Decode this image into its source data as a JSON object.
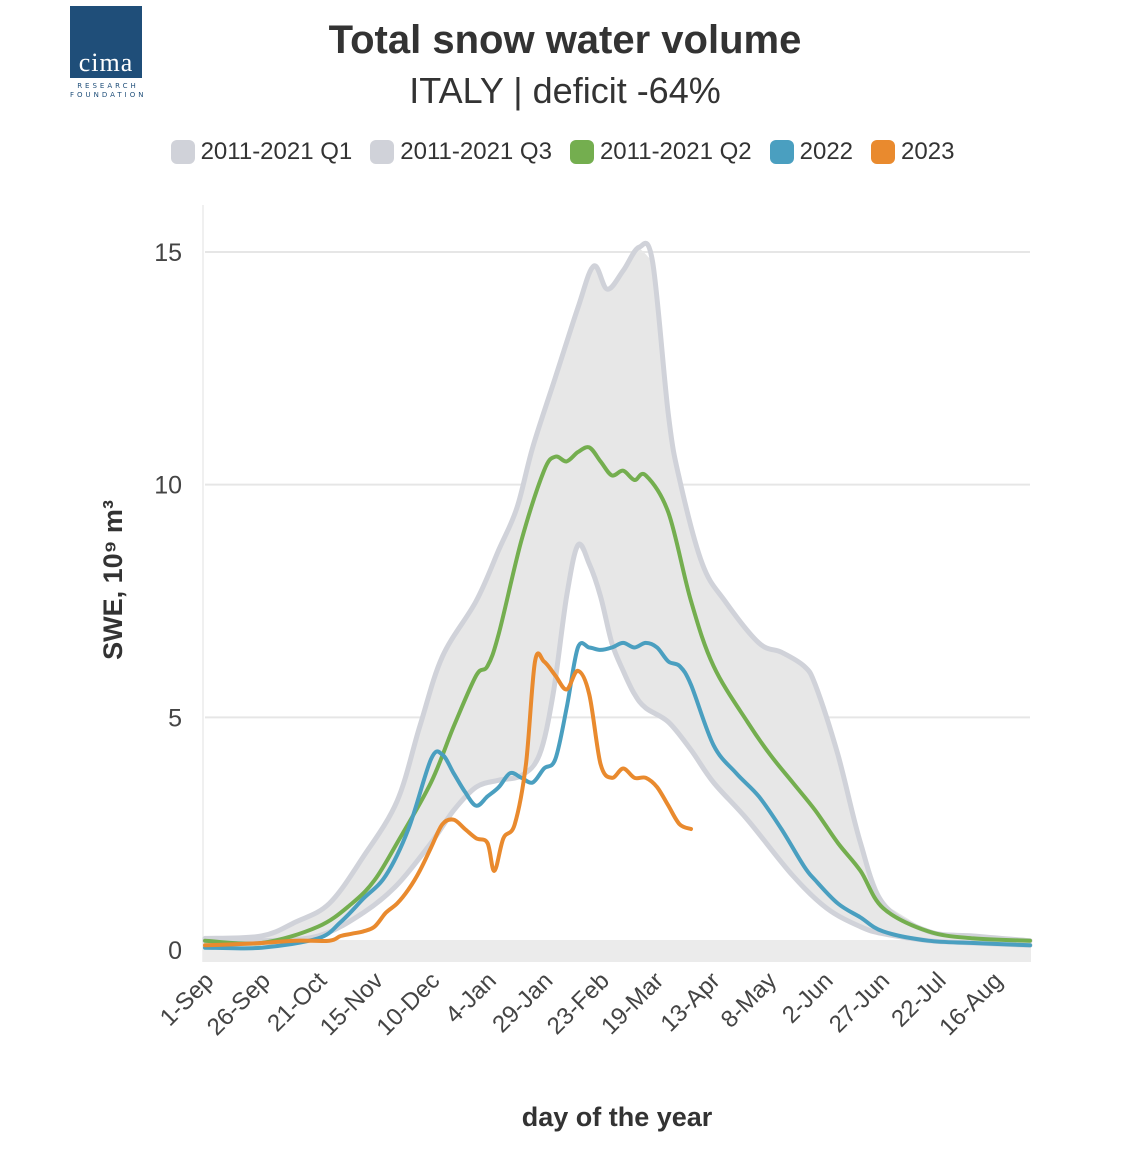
{
  "logo": {
    "word": "cima",
    "line1": "RESEARCH",
    "line2": "FOUNDATION"
  },
  "chart_data": {
    "type": "line",
    "title": "Total snow water volume",
    "subtitle": "ITALY | deficit -64%",
    "xlabel": "day of the year",
    "ylabel": "SWE, 10⁹ m³",
    "xlim": [
      0,
      365
    ],
    "ylim": [
      0,
      15.8
    ],
    "yticks": [
      0,
      5,
      10,
      15
    ],
    "grid": true,
    "legend_position": "top",
    "xticks": [
      {
        "day": 0,
        "label": "1-Sep"
      },
      {
        "day": 25,
        "label": "26-Sep"
      },
      {
        "day": 50,
        "label": "21-Oct"
      },
      {
        "day": 75,
        "label": "15-Nov"
      },
      {
        "day": 100,
        "label": "10-Dec"
      },
      {
        "day": 125,
        "label": "4-Jan"
      },
      {
        "day": 150,
        "label": "29-Jan"
      },
      {
        "day": 175,
        "label": "23-Feb"
      },
      {
        "day": 199,
        "label": "19-Mar"
      },
      {
        "day": 224,
        "label": "13-Apr"
      },
      {
        "day": 249,
        "label": "8-May"
      },
      {
        "day": 274,
        "label": "2-Jun"
      },
      {
        "day": 299,
        "label": "27-Jun"
      },
      {
        "day": 324,
        "label": "22-Jul"
      },
      {
        "day": 349,
        "label": "16-Aug"
      }
    ],
    "band": {
      "lower": "2011-2021 Q1",
      "upper": "2011-2021 Q3",
      "fill": "#e7e7e7"
    },
    "series": [
      {
        "name": "2011-2021 Q1",
        "color": "#d0d2d9",
        "x": [
          0,
          25,
          50,
          70,
          85,
          100,
          110,
          120,
          130,
          140,
          148,
          154,
          160,
          165,
          170,
          175,
          180,
          185,
          190,
          195,
          205,
          215,
          225,
          240,
          260,
          275,
          290,
          300,
          320,
          340,
          365
        ],
        "y": [
          0.2,
          0.2,
          0.3,
          0.8,
          1.4,
          2.3,
          3.0,
          3.5,
          3.65,
          3.75,
          4.2,
          5.5,
          7.6,
          8.7,
          8.3,
          7.6,
          6.6,
          6.0,
          5.5,
          5.2,
          4.9,
          4.3,
          3.6,
          2.8,
          1.6,
          0.9,
          0.5,
          0.35,
          0.2,
          0.15,
          0.1
        ]
      },
      {
        "name": "2011-2021 Q3",
        "color": "#d0d2d9",
        "x": [
          0,
          25,
          40,
          55,
          70,
          85,
          95,
          105,
          120,
          130,
          138,
          145,
          155,
          165,
          172,
          178,
          185,
          192,
          198,
          205,
          210,
          220,
          230,
          245,
          255,
          265,
          270,
          280,
          290,
          300,
          320,
          340,
          365
        ],
        "y": [
          0.25,
          0.3,
          0.6,
          1.0,
          2.0,
          3.2,
          4.8,
          6.3,
          7.5,
          8.6,
          9.5,
          10.8,
          12.3,
          13.8,
          14.7,
          14.2,
          14.6,
          15.1,
          14.8,
          11.5,
          10.1,
          8.3,
          7.5,
          6.6,
          6.4,
          6.1,
          5.7,
          4.2,
          2.3,
          1.0,
          0.4,
          0.3,
          0.2
        ]
      },
      {
        "name": "2011-2021 Q2",
        "color": "#74ae4f",
        "x": [
          0,
          25,
          50,
          65,
          75,
          85,
          100,
          110,
          120,
          125,
          130,
          140,
          150,
          155,
          160,
          165,
          170,
          175,
          180,
          185,
          190,
          195,
          205,
          215,
          225,
          240,
          250,
          260,
          270,
          280,
          290,
          300,
          320,
          340,
          365
        ],
        "y": [
          0.2,
          0.15,
          0.5,
          1.0,
          1.5,
          2.3,
          3.6,
          4.8,
          5.9,
          6.1,
          6.8,
          8.8,
          10.3,
          10.6,
          10.5,
          10.7,
          10.8,
          10.5,
          10.2,
          10.3,
          10.1,
          10.2,
          9.4,
          7.5,
          6.1,
          4.9,
          4.2,
          3.6,
          3.0,
          2.3,
          1.7,
          0.9,
          0.4,
          0.25,
          0.2
        ]
      },
      {
        "name": "2022",
        "color": "#4a9fc0",
        "x": [
          0,
          25,
          50,
          60,
          70,
          80,
          90,
          100,
          105,
          110,
          115,
          120,
          125,
          130,
          135,
          140,
          145,
          150,
          155,
          160,
          165,
          170,
          175,
          180,
          185,
          190,
          195,
          200,
          205,
          210,
          215,
          225,
          235,
          245,
          255,
          265,
          270,
          280,
          290,
          300,
          320,
          340,
          365
        ],
        "y": [
          0.05,
          0.05,
          0.25,
          0.6,
          1.1,
          1.6,
          2.6,
          4.1,
          4.2,
          3.8,
          3.4,
          3.1,
          3.3,
          3.5,
          3.8,
          3.7,
          3.6,
          3.9,
          4.1,
          5.2,
          6.5,
          6.5,
          6.45,
          6.5,
          6.6,
          6.5,
          6.6,
          6.5,
          6.2,
          6.1,
          5.7,
          4.4,
          3.8,
          3.3,
          2.6,
          1.8,
          1.5,
          1.0,
          0.7,
          0.4,
          0.2,
          0.15,
          0.1
        ]
      },
      {
        "name": "2023",
        "color": "#e98a2e",
        "x": [
          0,
          25,
          40,
          55,
          60,
          65,
          70,
          75,
          80,
          85,
          90,
          95,
          100,
          105,
          110,
          115,
          120,
          125,
          128,
          132,
          137,
          142,
          146,
          150,
          155,
          160,
          165,
          170,
          175,
          180,
          185,
          190,
          195,
          200,
          205,
          210,
          215
        ],
        "y": [
          0.1,
          0.15,
          0.2,
          0.2,
          0.3,
          0.35,
          0.4,
          0.5,
          0.8,
          1.0,
          1.3,
          1.7,
          2.2,
          2.7,
          2.8,
          2.6,
          2.4,
          2.3,
          1.7,
          2.4,
          2.7,
          4.0,
          6.2,
          6.2,
          5.9,
          5.6,
          6.0,
          5.5,
          4.0,
          3.7,
          3.9,
          3.7,
          3.7,
          3.5,
          3.1,
          2.7,
          2.6
        ]
      }
    ]
  }
}
